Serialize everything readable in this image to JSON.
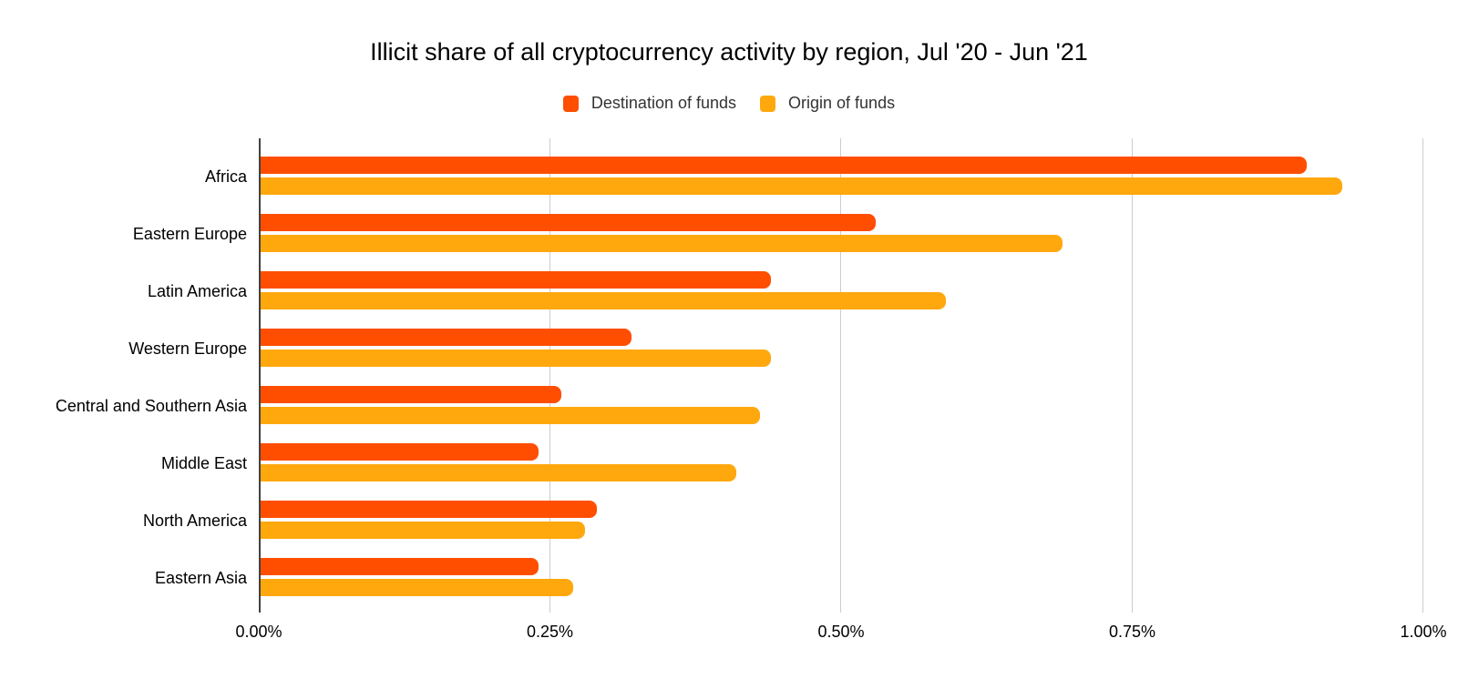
{
  "title": "Illicit share of all cryptocurrency activity by region, Jul '20 - Jun '21",
  "legend": [
    {
      "label": "Destination of funds",
      "color": "#FF4E00"
    },
    {
      "label": "Origin of funds",
      "color": "#FFA80D"
    }
  ],
  "chart_data": {
    "type": "bar",
    "orientation": "horizontal",
    "title": "Illicit share of all cryptocurrency activity by region, Jul '20 - Jun '21",
    "categories": [
      "Africa",
      "Eastern Europe",
      "Latin America",
      "Western Europe",
      "Central and Southern Asia",
      "Middle East",
      "North America",
      "Eastern Asia"
    ],
    "series": [
      {
        "name": "Destination of funds",
        "color": "#FF4E00",
        "values": [
          0.9,
          0.53,
          0.44,
          0.32,
          0.26,
          0.24,
          0.29,
          0.24
        ]
      },
      {
        "name": "Origin of funds",
        "color": "#FFA80D",
        "values": [
          0.93,
          0.69,
          0.59,
          0.44,
          0.43,
          0.41,
          0.28,
          0.27
        ]
      }
    ],
    "unit": "%",
    "xlabel": "",
    "ylabel": "",
    "xlim": [
      0,
      1.0
    ],
    "x_ticks": [
      "0.00%",
      "0.25%",
      "0.50%",
      "0.75%",
      "1.00%"
    ],
    "x_tick_values": [
      0,
      0.25,
      0.5,
      0.75,
      1.0
    ],
    "grid": "vertical-only",
    "legend_position": "top-center"
  },
  "colors": {
    "background": "#FFFFFF",
    "gridline": "#CCCCCC",
    "axis_line": "#424242",
    "text": "#000000",
    "legend_text": "#333333"
  }
}
